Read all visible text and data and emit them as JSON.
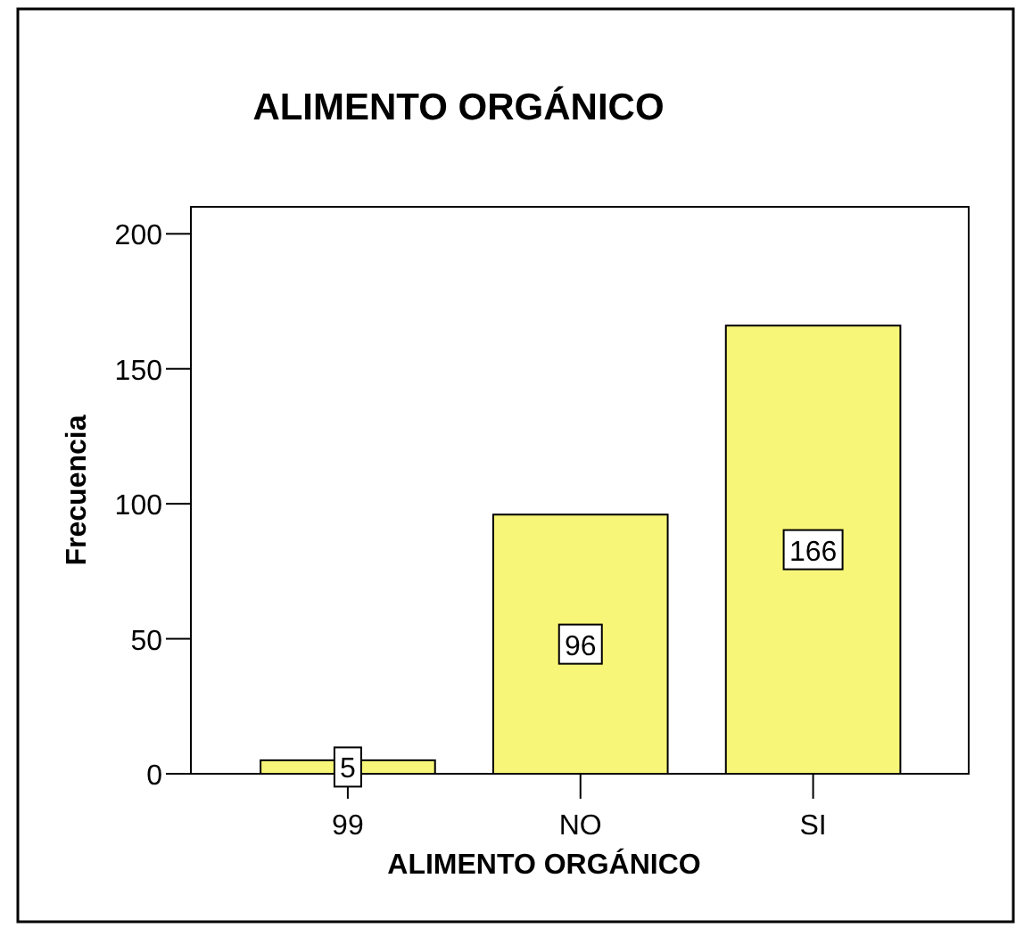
{
  "chart_data": {
    "type": "bar",
    "title": "ALIMENTO ORGÁNICO",
    "xlabel": "ALIMENTO ORGÁNICO",
    "ylabel": "Frecuencia",
    "categories": [
      "99",
      "NO",
      "SI"
    ],
    "values": [
      5,
      96,
      166
    ],
    "color": "#f8f678",
    "data_labels": true,
    "ylim": [
      0,
      210
    ],
    "yticks": [
      0,
      50,
      100,
      150,
      200
    ],
    "grid": false
  }
}
